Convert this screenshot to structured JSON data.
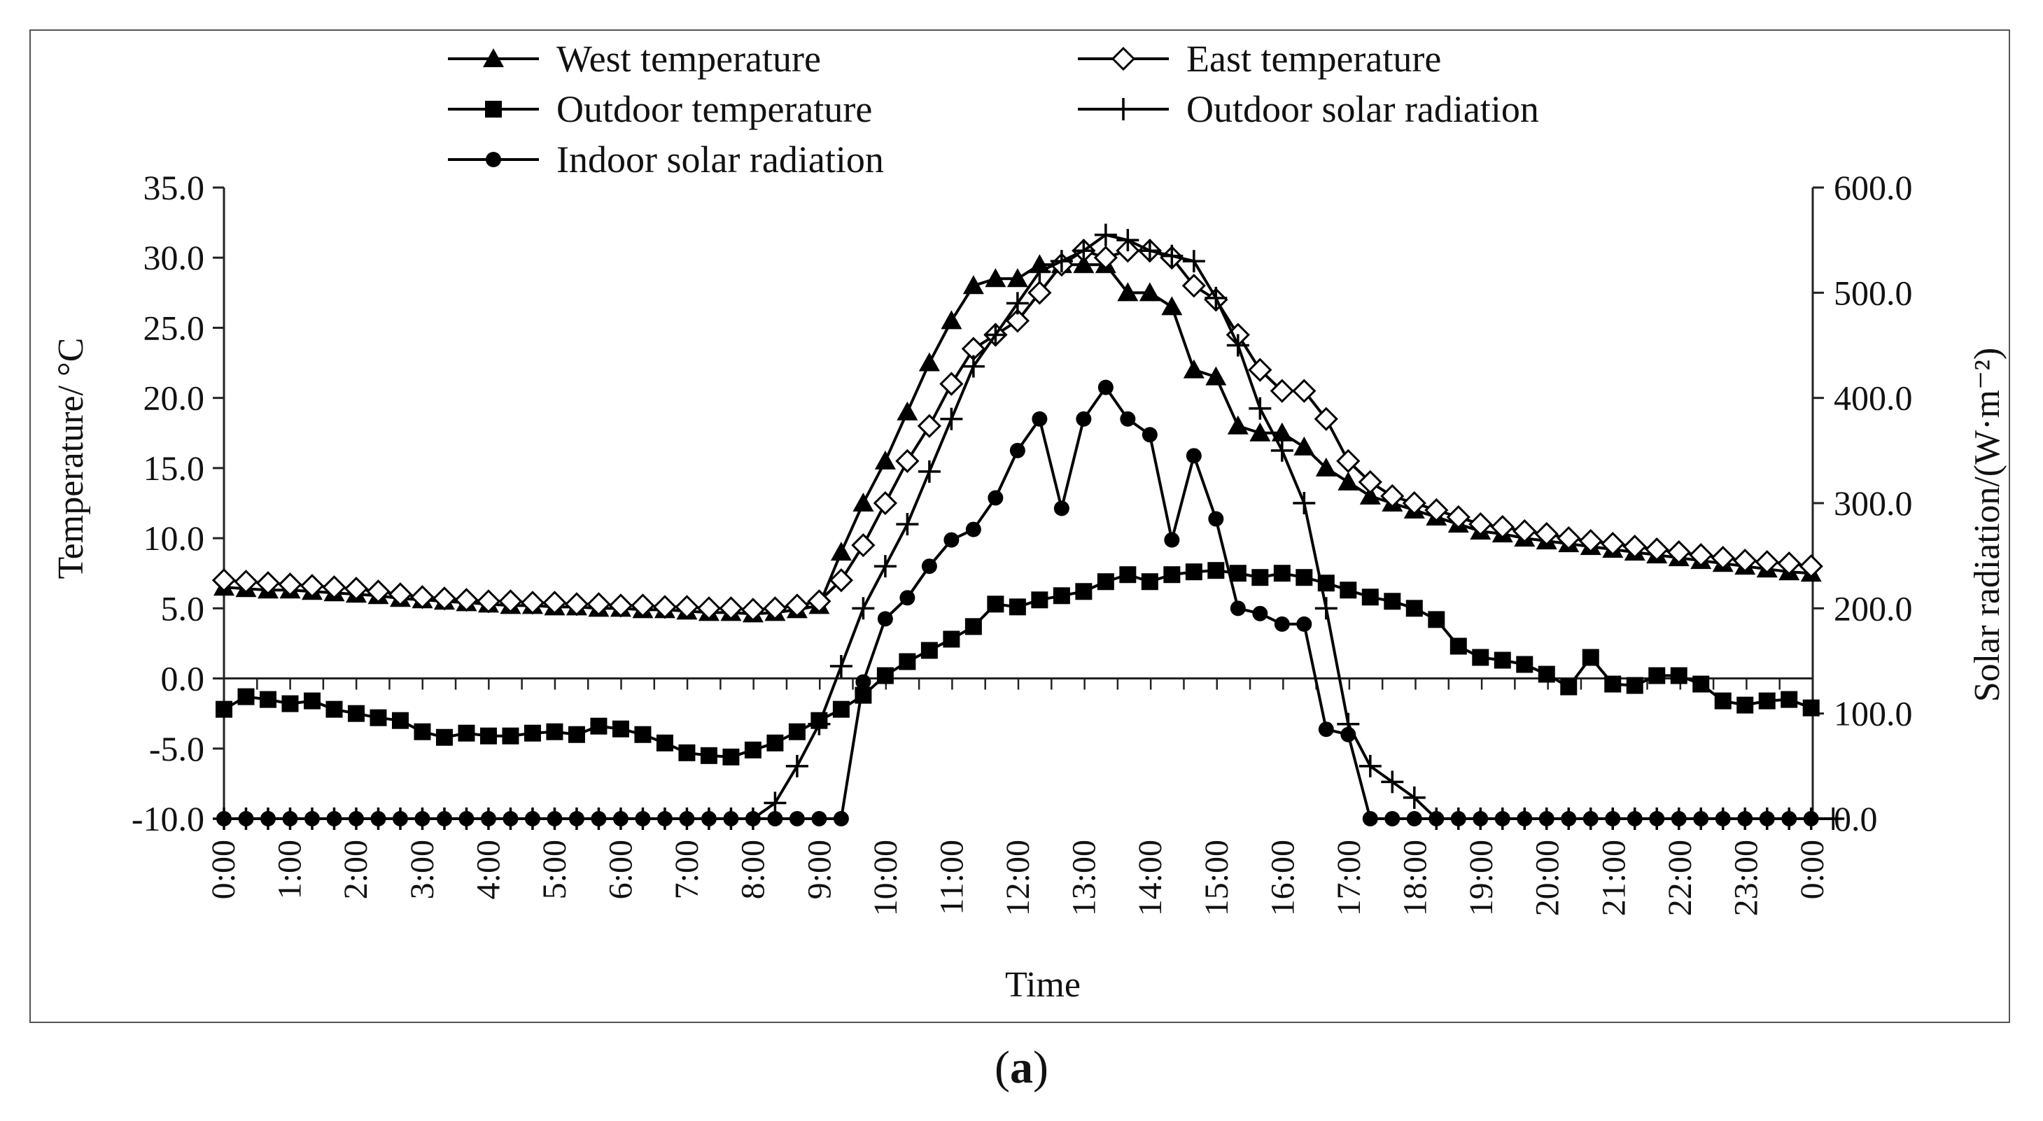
{
  "figure": {
    "label": "a"
  },
  "chart_data": {
    "type": "line",
    "xlabel": "Time",
    "ylabel_left": "Temperature/ °C",
    "ylabel_right": "Solar radiation/(W·m⁻²)",
    "ylim_left": [
      -10,
      35
    ],
    "ylim_right": [
      0,
      600
    ],
    "y_ticks_left": [
      "35.0",
      "30.0",
      "25.0",
      "20.0",
      "15.0",
      "10.0",
      "5.0",
      "0.0",
      "-5.0",
      "-10.0"
    ],
    "y_ticks_right": [
      "600.0",
      "500.0",
      "400.0",
      "300.0",
      "200.0",
      "100.0",
      "0.0"
    ],
    "x_tick_labels": [
      "0:00",
      "1:00",
      "2:00",
      "3:00",
      "4:00",
      "5:00",
      "6:00",
      "7:00",
      "8:00",
      "9:00",
      "10:00",
      "11:00",
      "12:00",
      "13:00",
      "14:00",
      "15:00",
      "16:00",
      "17:00",
      "18:00",
      "19:00",
      "20:00",
      "21:00",
      "22:00",
      "23:00",
      "0:00"
    ],
    "x_step_hours": 0.333,
    "legend": {
      "placement": "top"
    },
    "series": [
      {
        "name": "West temperature",
        "axis": "left",
        "marker": "triangle",
        "values": [
          6.5,
          6.4,
          6.3,
          6.3,
          6.2,
          6.1,
          6.0,
          5.9,
          5.7,
          5.6,
          5.5,
          5.4,
          5.3,
          5.2,
          5.2,
          5.1,
          5.1,
          5.0,
          5.0,
          4.9,
          4.9,
          4.8,
          4.7,
          4.7,
          4.6,
          4.7,
          4.9,
          5.2,
          9.0,
          12.5,
          15.5,
          19.0,
          22.5,
          25.5,
          28.0,
          28.5,
          28.5,
          29.5,
          29.5,
          29.5,
          29.5,
          27.5,
          27.5,
          26.5,
          22.0,
          21.5,
          18.0,
          17.5,
          17.5,
          16.5,
          15.0,
          14.0,
          13.0,
          12.5,
          12.0,
          11.5,
          11.0,
          10.5,
          10.3,
          10.0,
          9.8,
          9.6,
          9.4,
          9.2,
          9.0,
          8.8,
          8.6,
          8.4,
          8.2,
          8.0,
          7.8,
          7.6,
          7.5
        ]
      },
      {
        "name": "East temperature",
        "axis": "left",
        "marker": "diamond",
        "values": [
          7.0,
          6.9,
          6.8,
          6.7,
          6.6,
          6.5,
          6.4,
          6.2,
          6.0,
          5.8,
          5.7,
          5.6,
          5.5,
          5.5,
          5.4,
          5.4,
          5.3,
          5.3,
          5.2,
          5.2,
          5.1,
          5.1,
          5.0,
          5.0,
          4.9,
          5.0,
          5.2,
          5.5,
          7.0,
          9.5,
          12.5,
          15.5,
          18.0,
          21.0,
          23.5,
          24.5,
          25.5,
          27.5,
          29.5,
          30.5,
          30.0,
          30.5,
          30.5,
          30.0,
          28.0,
          27.0,
          24.5,
          22.0,
          20.5,
          20.5,
          18.5,
          15.5,
          14.0,
          13.0,
          12.5,
          12.0,
          11.5,
          11.0,
          10.8,
          10.5,
          10.3,
          10.0,
          9.8,
          9.6,
          9.4,
          9.2,
          9.0,
          8.8,
          8.6,
          8.4,
          8.3,
          8.2,
          8.0
        ]
      },
      {
        "name": "Outdoor temperature",
        "axis": "left",
        "marker": "square",
        "values": [
          -2.2,
          -1.3,
          -1.5,
          -1.8,
          -1.6,
          -2.2,
          -2.5,
          -2.8,
          -3.0,
          -3.8,
          -4.2,
          -3.9,
          -4.1,
          -4.1,
          -3.9,
          -3.8,
          -4.0,
          -3.4,
          -3.6,
          -4.0,
          -4.6,
          -5.3,
          -5.5,
          -5.6,
          -5.1,
          -4.6,
          -3.8,
          -3.0,
          -2.2,
          -1.2,
          0.2,
          1.2,
          2.0,
          2.8,
          3.7,
          5.3,
          5.1,
          5.6,
          5.9,
          6.2,
          6.9,
          7.4,
          6.9,
          7.4,
          7.6,
          7.7,
          7.5,
          7.2,
          7.5,
          7.2,
          6.8,
          6.3,
          5.8,
          5.5,
          5.0,
          4.2,
          2.3,
          1.5,
          1.3,
          1.0,
          0.3,
          -0.6,
          1.5,
          -0.4,
          -0.5,
          0.2,
          0.2,
          -0.4,
          -1.6,
          -1.9,
          -1.6,
          -1.5,
          -2.1
        ]
      },
      {
        "name": "Outdoor solar radiation",
        "axis": "right",
        "marker": "plus",
        "values": [
          0,
          0,
          0,
          0,
          0,
          0,
          0,
          0,
          0,
          0,
          0,
          0,
          0,
          0,
          0,
          0,
          0,
          0,
          0,
          0,
          0,
          0,
          0,
          0,
          0,
          15,
          50,
          90,
          145,
          200,
          240,
          280,
          330,
          380,
          430,
          460,
          490,
          520,
          530,
          540,
          555,
          550,
          540,
          535,
          530,
          495,
          450,
          390,
          350,
          300,
          200,
          90,
          50,
          35,
          20,
          0,
          0,
          0,
          0,
          0,
          0,
          0,
          0,
          0,
          0,
          0,
          0,
          0,
          0,
          0,
          0,
          0,
          0,
          0
        ]
      },
      {
        "name": "Indoor solar radiation",
        "axis": "right",
        "marker": "circle",
        "values": [
          0,
          0,
          0,
          0,
          0,
          0,
          0,
          0,
          0,
          0,
          0,
          0,
          0,
          0,
          0,
          0,
          0,
          0,
          0,
          0,
          0,
          0,
          0,
          0,
          0,
          0,
          0,
          0,
          0,
          130,
          190,
          210,
          240,
          265,
          275,
          305,
          350,
          380,
          295,
          380,
          410,
          380,
          365,
          265,
          345,
          285,
          200,
          195,
          185,
          185,
          85,
          80,
          0,
          0,
          0,
          0,
          0,
          0,
          0,
          0,
          0,
          0,
          0,
          0,
          0,
          0,
          0,
          0,
          0,
          0,
          0,
          0,
          0
        ]
      }
    ]
  }
}
